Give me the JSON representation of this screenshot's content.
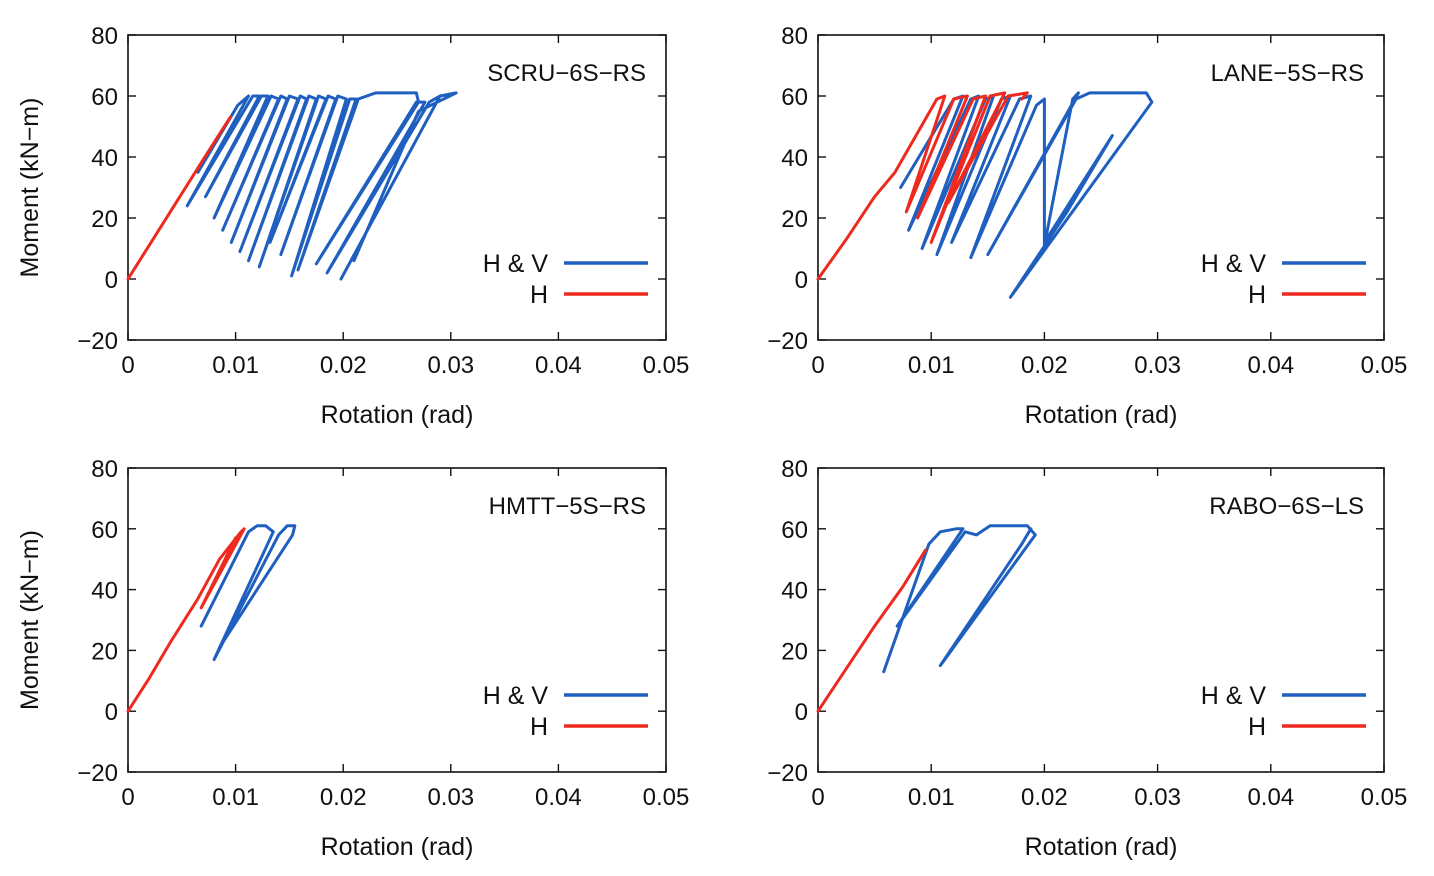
{
  "chart_data": [
    {
      "type": "line",
      "title": "SCRU−6S−RS",
      "xlabel": "Rotation (rad)",
      "ylabel": "Moment (kN−m)",
      "xlim": [
        0,
        0.05
      ],
      "ylim": [
        -20,
        80
      ],
      "xticks": [
        "0",
        "0.01",
        "0.02",
        "0.03",
        "0.04",
        "0.05"
      ],
      "yticks": [
        "−20",
        "0",
        "20",
        "40",
        "60",
        "80"
      ],
      "grid": false,
      "legend": "lower-right",
      "series": [
        {
          "name": "H & V",
          "color": "#1f5fbf",
          "x": [
            0.0065,
            0.0102,
            0.0112,
            0.0055,
            0.0116,
            0.0122,
            0.0072,
            0.0124,
            0.013,
            0.008,
            0.0133,
            0.014,
            0.0088,
            0.0142,
            0.0148,
            0.0096,
            0.015,
            0.0158,
            0.0104,
            0.016,
            0.0166,
            0.0112,
            0.0168,
            0.0175,
            0.0122,
            0.0177,
            0.0184,
            0.0132,
            0.0186,
            0.0193,
            0.0142,
            0.0195,
            0.0203,
            0.0152,
            0.0206,
            0.0212,
            0.0158,
            0.0214,
            0.023,
            0.0268,
            0.027,
            0.0175,
            0.0268,
            0.0276,
            0.0185,
            0.028,
            0.029,
            0.0198,
            0.029,
            0.0305,
            0.027,
            0.021
          ],
          "y": [
            35,
            57,
            60,
            24,
            60,
            60,
            27,
            60,
            60,
            20,
            60,
            59,
            16,
            60,
            59,
            12,
            60,
            59,
            9,
            60,
            59,
            6,
            60,
            59,
            4,
            60,
            59,
            12,
            60,
            59,
            8,
            60,
            59,
            1,
            59,
            59,
            3,
            59,
            61,
            61,
            58,
            5,
            58,
            58,
            2,
            58,
            60,
            0,
            60,
            61,
            55,
            6
          ]
        },
        {
          "name": "H",
          "color": "#ee2a1e",
          "x": [
            0,
            0.0025,
            0.005,
            0.0075,
            0.0095
          ],
          "y": [
            0,
            14,
            28,
            42,
            53
          ]
        }
      ]
    },
    {
      "type": "line",
      "title": "LANE−5S−RS",
      "xlabel": "Rotation (rad)",
      "ylabel": "",
      "xlim": [
        0,
        0.05
      ],
      "ylim": [
        -20,
        80
      ],
      "xticks": [
        "0",
        "0.01",
        "0.02",
        "0.03",
        "0.04",
        "0.05"
      ],
      "yticks": [
        "−20",
        "0",
        "20",
        "40",
        "60",
        "80"
      ],
      "grid": false,
      "legend": "lower-right",
      "series": [
        {
          "name": "H & V",
          "color": "#1f5fbf",
          "x": [
            0.0073,
            0.012,
            0.0128,
            0.008,
            0.0135,
            0.0142,
            0.0092,
            0.0148,
            0.0155,
            0.0105,
            0.0162,
            0.017,
            0.0118,
            0.0178,
            0.0188,
            0.0135,
            0.0193,
            0.02,
            0.02,
            0.0225,
            0.023,
            0.015,
            0.0228,
            0.024,
            0.029,
            0.0295,
            0.017,
            0.022,
            0.026,
            0.02
          ],
          "y": [
            30,
            59,
            60,
            16,
            59,
            60,
            10,
            59,
            60,
            8,
            59,
            60,
            12,
            59,
            60,
            7,
            57,
            59,
            11,
            59,
            61,
            8,
            59,
            61,
            61,
            58,
            -6,
            22,
            47,
            12
          ]
        },
        {
          "name": "H",
          "color": "#ee2a1e",
          "x": [
            0,
            0.0025,
            0.005,
            0.0068,
            0.0105,
            0.0112,
            0.0078,
            0.012,
            0.0132,
            0.0088,
            0.0137,
            0.0148,
            0.01,
            0.0152,
            0.0165,
            0.0115,
            0.0168,
            0.0185,
            0.018
          ],
          "y": [
            0,
            13,
            27,
            35,
            59,
            60,
            22,
            59,
            60,
            20,
            59,
            60,
            12,
            60,
            61,
            25,
            60,
            61,
            59
          ]
        }
      ]
    },
    {
      "type": "line",
      "title": "HMTT−5S−RS",
      "xlabel": "Rotation (rad)",
      "ylabel": "Moment (kN−m)",
      "xlim": [
        0,
        0.05
      ],
      "ylim": [
        -20,
        80
      ],
      "xticks": [
        "0",
        "0.01",
        "0.02",
        "0.03",
        "0.04",
        "0.05"
      ],
      "yticks": [
        "−20",
        "0",
        "20",
        "40",
        "60",
        "80"
      ],
      "grid": false,
      "legend": "lower-right",
      "series": [
        {
          "name": "H & V",
          "color": "#1f5fbf",
          "x": [
            0.0068,
            0.0112,
            0.012,
            0.0128,
            0.0135,
            0.008,
            0.014,
            0.0148,
            0.0155,
            0.0153,
            0.0085
          ],
          "y": [
            28,
            59,
            61,
            61,
            59,
            17,
            58,
            61,
            61,
            58,
            21
          ]
        },
        {
          "name": "H",
          "color": "#ee2a1e",
          "x": [
            0,
            0.002,
            0.004,
            0.0065,
            0.0085,
            0.0105,
            0.0108,
            0.0068,
            0.01
          ],
          "y": [
            0,
            11,
            23,
            37,
            50,
            59,
            60,
            34,
            57
          ]
        }
      ]
    },
    {
      "type": "line",
      "title": "RABO−6S−LS",
      "xlabel": "Rotation (rad)",
      "ylabel": "",
      "xlim": [
        0,
        0.05
      ],
      "ylim": [
        -20,
        80
      ],
      "xticks": [
        "0",
        "0.01",
        "0.02",
        "0.03",
        "0.04",
        "0.05"
      ],
      "yticks": [
        "−20",
        "0",
        "20",
        "40",
        "60",
        "80"
      ],
      "grid": false,
      "legend": "lower-right",
      "series": [
        {
          "name": "H & V",
          "color": "#1f5fbf",
          "x": [
            0.0058,
            0.0098,
            0.0108,
            0.0122,
            0.0128,
            0.007,
            0.013,
            0.014,
            0.0152,
            0.0185,
            0.0192,
            0.0108,
            0.018,
            0.0188
          ],
          "y": [
            13,
            55,
            59,
            60,
            60,
            28,
            59,
            58,
            61,
            61,
            58,
            15,
            55,
            60
          ]
        },
        {
          "name": "H",
          "color": "#ee2a1e",
          "x": [
            0,
            0.0025,
            0.005,
            0.0075,
            0.0095
          ],
          "y": [
            0,
            14,
            28,
            41,
            53
          ]
        }
      ]
    }
  ]
}
